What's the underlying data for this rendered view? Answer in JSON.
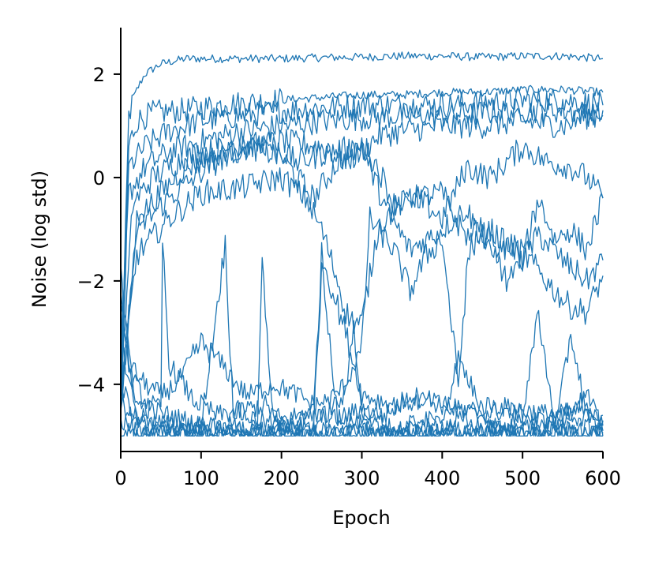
{
  "chart_data": {
    "type": "line",
    "title": "",
    "xlabel": "Epoch",
    "ylabel": "Noise (log std)",
    "xlim": [
      0,
      600
    ],
    "ylim": [
      -5.3,
      2.9
    ],
    "x_ticks": [
      0,
      100,
      200,
      300,
      400,
      500,
      600
    ],
    "y_ticks": [
      2,
      0,
      -2,
      -4
    ],
    "x_tick_labels": [
      "0",
      "100",
      "200",
      "300",
      "400",
      "500",
      "600"
    ],
    "y_tick_labels": [
      "2",
      "0",
      "−2",
      "−4"
    ],
    "grid": false,
    "legend": "none",
    "color": "#1f77b4",
    "series": [
      {
        "x": [
          0,
          10,
          20,
          30,
          50,
          80,
          120,
          160,
          200,
          250,
          300,
          350,
          400,
          450,
          500,
          550,
          600
        ],
        "y": [
          -4.5,
          1.2,
          1.7,
          2.0,
          2.2,
          2.3,
          2.3,
          2.3,
          2.3,
          2.32,
          2.33,
          2.35,
          2.35,
          2.33,
          2.35,
          2.35,
          2.3
        ]
      },
      {
        "x": [
          0,
          10,
          20,
          40,
          80,
          120,
          160,
          200,
          250,
          300,
          350,
          400,
          450,
          500,
          550,
          600
        ],
        "y": [
          -4.0,
          0.6,
          1.1,
          1.25,
          1.3,
          1.4,
          1.45,
          1.5,
          1.55,
          1.6,
          1.6,
          1.65,
          1.65,
          1.7,
          1.7,
          1.65
        ]
      },
      {
        "x": [
          0,
          10,
          30,
          60,
          100,
          150,
          200,
          250,
          300,
          350,
          400,
          450,
          500,
          550,
          600
        ],
        "y": [
          -4.8,
          0.2,
          0.6,
          0.9,
          1.1,
          1.2,
          1.3,
          1.35,
          1.4,
          1.4,
          1.4,
          1.45,
          1.5,
          1.5,
          1.4
        ]
      },
      {
        "x": [
          0,
          10,
          30,
          60,
          100,
          150,
          200,
          250,
          300,
          350,
          400,
          450,
          500,
          550,
          600
        ],
        "y": [
          -3.5,
          -0.3,
          0.2,
          0.5,
          0.7,
          0.9,
          1.0,
          1.1,
          1.15,
          1.2,
          1.2,
          1.25,
          1.3,
          1.3,
          1.2
        ]
      },
      {
        "x": [
          0,
          15,
          40,
          70,
          100,
          150,
          200,
          250,
          280,
          300,
          320,
          350,
          400,
          450,
          500,
          550,
          600
        ],
        "y": [
          -4.2,
          -0.5,
          0.0,
          0.3,
          0.5,
          0.6,
          0.7,
          0.6,
          0.3,
          0.5,
          0.8,
          0.9,
          1.0,
          1.0,
          1.1,
          1.0,
          1.3
        ]
      },
      {
        "x": [
          0,
          20,
          50,
          80,
          120,
          160,
          200,
          240,
          270,
          300,
          320,
          340,
          370,
          400,
          430,
          460,
          500,
          530,
          560,
          580,
          600
        ],
        "y": [
          -4.6,
          -0.8,
          -0.3,
          0.2,
          0.4,
          0.6,
          0.4,
          -0.4,
          0.3,
          0.6,
          0.2,
          -0.5,
          -0.4,
          -0.8,
          0.2,
          0.0,
          0.6,
          0.3,
          0.2,
          0.0,
          -0.4
        ]
      },
      {
        "x": [
          0,
          20,
          60,
          100,
          140,
          180,
          200,
          220,
          260,
          300,
          330,
          360,
          400,
          430,
          460,
          490,
          520,
          540,
          560,
          580,
          600
        ],
        "y": [
          -4.4,
          -1.0,
          -0.4,
          0.1,
          0.5,
          0.7,
          0.5,
          0.3,
          0.5,
          0.6,
          -0.6,
          -1.4,
          -1.0,
          -0.6,
          -1.5,
          -1.3,
          -1.8,
          -2.2,
          -2.5,
          -2.6,
          -1.9
        ]
      },
      {
        "x": [
          0,
          20,
          60,
          100,
          150,
          200,
          230,
          250,
          270,
          280,
          290,
          300,
          320,
          340,
          360,
          400,
          420,
          440,
          460,
          500,
          520,
          550,
          580,
          600
        ],
        "y": [
          -4.2,
          -1.5,
          -0.8,
          -0.3,
          -0.2,
          0.0,
          -0.4,
          -1.0,
          -2.0,
          -2.6,
          -2.8,
          -2.8,
          -1.0,
          -0.6,
          -0.4,
          -0.3,
          -0.9,
          -1.3,
          -1.0,
          -1.6,
          -1.1,
          -1.6,
          -2.0,
          -1.6
        ]
      },
      {
        "x": [
          0,
          10,
          30,
          50,
          70,
          100,
          120,
          150,
          160,
          190,
          220,
          240,
          260,
          280,
          300,
          310,
          320,
          340,
          360,
          380,
          400,
          420,
          430,
          440,
          460,
          480,
          500,
          520,
          540,
          560,
          580,
          600
        ],
        "y": [
          -2.2,
          -3.6,
          -4.0,
          -4.2,
          -4.0,
          -3.2,
          -3.5,
          -4.1,
          -4.2,
          -4.0,
          -4.2,
          -4.4,
          -4.3,
          -4.0,
          -3.3,
          -0.8,
          -1.0,
          -1.4,
          -2.2,
          -1.5,
          -1.2,
          -4.0,
          -2.0,
          -0.8,
          -1.2,
          -2.0,
          -1.6,
          -0.4,
          -1.2,
          -1.0,
          -1.4,
          -0.4
        ]
      },
      {
        "x": [
          0,
          10,
          30,
          50,
          52,
          60,
          90,
          120,
          150,
          180,
          200,
          240,
          250,
          280,
          300,
          340,
          380,
          420,
          460,
          500,
          540,
          570,
          600
        ],
        "y": [
          -1.9,
          -3.8,
          -4.3,
          -4.5,
          -1.2,
          -3.6,
          -4.3,
          -4.6,
          -4.5,
          -4.4,
          -4.7,
          -4.5,
          -1.5,
          -3.0,
          -4.2,
          -4.4,
          -4.3,
          -4.5,
          -4.4,
          -4.5,
          -4.6,
          -4.5,
          -4.6
        ]
      },
      {
        "x": [
          0,
          20,
          60,
          100,
          130,
          140,
          170,
          200,
          240,
          260,
          300,
          330,
          360,
          400,
          440,
          480,
          520,
          560,
          600
        ],
        "y": [
          -2.3,
          -4.4,
          -4.6,
          -4.8,
          -1.3,
          -4.5,
          -4.7,
          -4.8,
          -4.6,
          -4.7,
          -4.5,
          -4.6,
          -4.2,
          -4.4,
          -4.6,
          -4.5,
          -4.7,
          -4.6,
          -4.7
        ]
      },
      {
        "x": [
          0,
          20,
          60,
          100,
          140,
          170,
          176,
          190,
          220,
          240,
          250,
          270,
          300,
          340,
          380,
          400,
          420,
          440,
          480,
          520,
          560,
          600
        ],
        "y": [
          -3.2,
          -4.6,
          -4.8,
          -4.9,
          -4.8,
          -4.9,
          -1.7,
          -4.7,
          -4.9,
          -4.8,
          -1.8,
          -4.6,
          -4.8,
          -4.9,
          -4.7,
          -4.8,
          -4.7,
          -4.8,
          -4.9,
          -4.8,
          -4.9,
          -4.8
        ]
      },
      {
        "x": [
          0,
          20,
          60,
          100,
          140,
          180,
          240,
          280,
          290,
          300,
          340,
          380,
          400,
          420,
          460,
          500,
          540,
          580,
          600
        ],
        "y": [
          -4.0,
          -4.7,
          -4.9,
          -4.8,
          -4.9,
          -4.9,
          -4.8,
          -4.2,
          -2.8,
          -4.5,
          -4.9,
          -4.8,
          -4.7,
          -3.5,
          -4.8,
          -4.9,
          -4.8,
          -4.2,
          -4.9
        ]
      },
      {
        "x": [
          0,
          20,
          60,
          100,
          140,
          180,
          220,
          260,
          300,
          340,
          380,
          420,
          460,
          500,
          540,
          560,
          580,
          600
        ],
        "y": [
          -4.9,
          -5.0,
          -4.9,
          -4.95,
          -5.0,
          -4.9,
          -4.95,
          -5.0,
          -4.9,
          -5.0,
          -4.95,
          -4.9,
          -5.0,
          -4.95,
          -5.0,
          -3.0,
          -4.6,
          -5.0
        ]
      },
      {
        "x": [
          0,
          20,
          60,
          100,
          140,
          180,
          220,
          260,
          300,
          340,
          380,
          420,
          460,
          500,
          520,
          540,
          580,
          600
        ],
        "y": [
          -4.7,
          -4.9,
          -5.0,
          -4.9,
          -5.0,
          -4.95,
          -5.0,
          -4.9,
          -5.0,
          -4.95,
          -5.0,
          -4.9,
          -5.0,
          -4.6,
          -2.6,
          -4.8,
          -5.0,
          -4.95
        ]
      },
      {
        "x": [
          0,
          20,
          60,
          100,
          140,
          180,
          220,
          260,
          300,
          340,
          380,
          420,
          460,
          500,
          540,
          580,
          600
        ],
        "y": [
          -4.3,
          -4.8,
          -4.9,
          -5.0,
          -4.9,
          -5.0,
          -4.95,
          -5.0,
          -4.9,
          -5.0,
          -4.95,
          -5.0,
          -4.9,
          -5.0,
          -4.95,
          -5.0,
          -5.0
        ]
      }
    ]
  }
}
